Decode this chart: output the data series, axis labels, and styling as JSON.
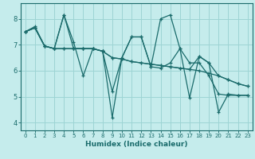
{
  "xlabel": "Humidex (Indice chaleur)",
  "bg_color": "#c5ecec",
  "grid_color": "#9dd4d4",
  "line_color": "#1a6b6b",
  "xlim": [
    -0.5,
    23.5
  ],
  "ylim": [
    3.7,
    8.6
  ],
  "yticks": [
    4,
    5,
    6,
    7,
    8
  ],
  "xticks": [
    0,
    1,
    2,
    3,
    4,
    5,
    6,
    7,
    8,
    9,
    10,
    11,
    12,
    13,
    14,
    15,
    16,
    17,
    18,
    19,
    20,
    21,
    22,
    23
  ],
  "series": [
    [
      7.5,
      7.7,
      6.95,
      6.85,
      8.15,
      7.1,
      5.8,
      6.85,
      6.75,
      4.2,
      6.5,
      7.3,
      7.3,
      6.15,
      8.0,
      8.15,
      6.85,
      4.95,
      6.55,
      6.3,
      4.4,
      5.1,
      5.05,
      5.05
    ],
    [
      7.5,
      7.65,
      6.95,
      6.85,
      8.15,
      6.85,
      6.85,
      6.85,
      6.75,
      5.2,
      6.5,
      7.3,
      7.3,
      6.15,
      6.1,
      6.3,
      6.85,
      6.3,
      6.3,
      5.8,
      5.1,
      5.05,
      5.05,
      5.05
    ],
    [
      7.5,
      7.65,
      6.95,
      6.85,
      6.85,
      6.85,
      6.85,
      6.85,
      6.75,
      6.5,
      6.45,
      6.35,
      6.3,
      6.25,
      6.2,
      6.15,
      6.1,
      6.05,
      6.0,
      5.9,
      5.8,
      5.65,
      5.5,
      5.4
    ],
    [
      7.5,
      7.65,
      6.95,
      6.85,
      6.85,
      6.85,
      6.85,
      6.85,
      6.75,
      6.5,
      6.45,
      6.35,
      6.3,
      6.25,
      6.2,
      6.15,
      6.1,
      6.05,
      6.55,
      6.3,
      5.8,
      5.65,
      5.5,
      5.4
    ]
  ]
}
